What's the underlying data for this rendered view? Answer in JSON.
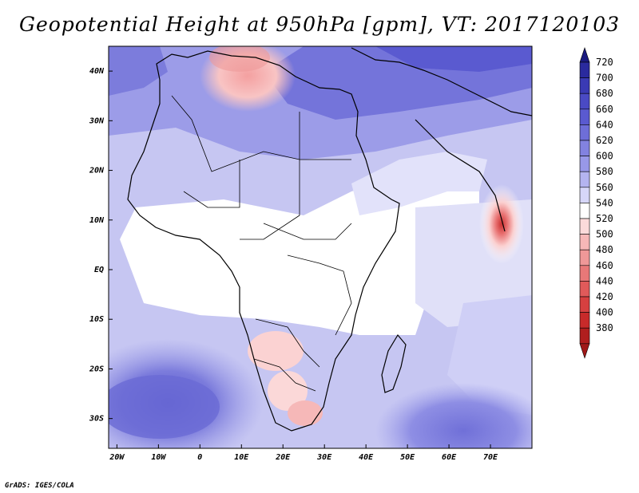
{
  "title": "Geopotential Height at 950hPa [gpm], VT: 2017120103",
  "credit": "GrADS: IGES/COLA",
  "map": {
    "region": "Africa",
    "lon_range": [
      -22,
      80
    ],
    "lat_range": [
      -36,
      45
    ],
    "lat_ticks": [
      "40N",
      "30N",
      "20N",
      "10N",
      "EQ",
      "10S",
      "20S",
      "30S"
    ],
    "lat_values": [
      40,
      30,
      20,
      10,
      0,
      -10,
      -20,
      -30
    ],
    "lon_ticks": [
      "20W",
      "10W",
      "0",
      "10E",
      "20E",
      "30E",
      "40E",
      "50E",
      "60E",
      "70E"
    ],
    "lon_values": [
      -20,
      -10,
      0,
      10,
      20,
      30,
      40,
      50,
      60,
      70
    ]
  },
  "colorbar": {
    "labels": [
      "720",
      "700",
      "680",
      "660",
      "640",
      "620",
      "600",
      "580",
      "560",
      "540",
      "520",
      "500",
      "480",
      "460",
      "440",
      "420",
      "400",
      "380"
    ],
    "colors": [
      "#2a2a9e",
      "#3a3ab4",
      "#4a4ac4",
      "#5a5ad0",
      "#6e6ed8",
      "#8282e0",
      "#9898e8",
      "#b4b4f0",
      "#d6d6f8",
      "#ffffff",
      "#fbdada",
      "#f6b8b8",
      "#ef9898",
      "#e87878",
      "#e05a5a",
      "#d64040",
      "#c82a2a",
      "#b01e1e"
    ],
    "top_color": "#1a1a80",
    "bottom_color": "#a01818"
  }
}
